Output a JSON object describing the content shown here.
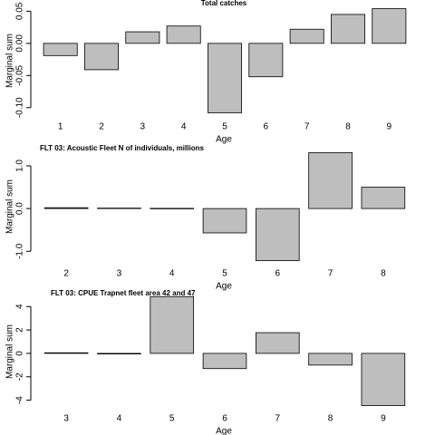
{
  "chart_data": [
    {
      "type": "bar",
      "title": "Total catches",
      "xlabel": "Age",
      "ylabel": "Marginal sum",
      "color": "#bebebe",
      "categories": [
        "1",
        "2",
        "3",
        "4",
        "5",
        "6",
        "7",
        "8",
        "9"
      ],
      "values": [
        -0.019,
        -0.041,
        0.018,
        0.027,
        -0.108,
        -0.052,
        0.022,
        0.045,
        0.054
      ],
      "ylim": [
        -0.113,
        0.059
      ],
      "yticks": [
        {
          "value": -0.1,
          "label": "-0.10"
        },
        {
          "value": -0.05,
          "label": "-0.05"
        },
        {
          "value": 0,
          "label": "0.00"
        },
        0.05
      ]
    },
    {
      "type": "bar",
      "title": "FLT 03: Acoustic Fleet   N of individuals, millions",
      "xlabel": "Age",
      "ylabel": "Marginal sum",
      "color": "#bebebe",
      "categories": [
        "2",
        "3",
        "4",
        "5",
        "6",
        "7",
        "8"
      ],
      "values": [
        0.02,
        0.01,
        0.005,
        -0.57,
        -1.22,
        1.31,
        0.5
      ],
      "ylim": [
        -1.27,
        1.36
      ],
      "yticks": [
        {
          "value": -1,
          "label": "-1.0"
        },
        {
          "value": 0,
          "label": "0.0"
        },
        {
          "value": 1,
          "label": "1.0"
        }
      ]
    },
    {
      "type": "bar",
      "title": "FLT 03: CPUE Trapnet fleet area 42 and 47",
      "xlabel": "Age",
      "ylabel": "Marginal sum",
      "color": "#bebebe",
      "categories": [
        "3",
        "4",
        "5",
        "6",
        "7",
        "8",
        "9"
      ],
      "values": [
        0.05,
        -0.05,
        4.85,
        -1.3,
        1.77,
        -1.0,
        -4.46
      ],
      "ylim": [
        -4.65,
        4.95
      ],
      "yticks": [
        -4,
        -2,
        0,
        2,
        4
      ]
    }
  ]
}
